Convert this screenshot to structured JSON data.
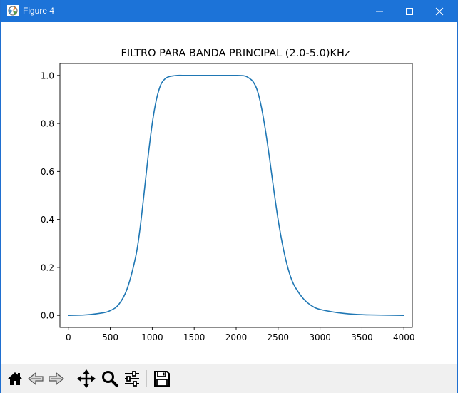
{
  "window": {
    "title": "Figure 4"
  },
  "toolbar": {
    "buttons": [
      {
        "icon": "home-icon"
      },
      {
        "icon": "back-arrow-icon"
      },
      {
        "icon": "forward-arrow-icon"
      },
      {
        "icon": "pan-move-icon"
      },
      {
        "icon": "zoom-magnifier-icon"
      },
      {
        "icon": "configure-subplots-icon"
      },
      {
        "icon": "save-floppy-icon"
      }
    ]
  },
  "chart_data": {
    "type": "line",
    "title": "FILTRO PARA BANDA PRINCIPAL (2.0-5.0)KHz",
    "xlabel": "",
    "ylabel": "",
    "xlim": [
      -100,
      4100
    ],
    "ylim": [
      -0.05,
      1.05
    ],
    "xticks": [
      0,
      500,
      1000,
      1500,
      2000,
      2500,
      3000,
      3500,
      4000
    ],
    "yticks": [
      0.0,
      0.2,
      0.4,
      0.6,
      0.8,
      1.0
    ],
    "ytick_labels": [
      "0.0",
      "0.2",
      "0.4",
      "0.6",
      "0.8",
      "1.0"
    ],
    "grid": false,
    "series": [
      {
        "color": "#1f77b4",
        "x": [
          0,
          200,
          400,
          500,
          600,
          700,
          800,
          850,
          900,
          950,
          1000,
          1050,
          1100,
          1150,
          1200,
          1300,
          1400,
          1600,
          1800,
          2000,
          2100,
          2150,
          2200,
          2250,
          2300,
          2350,
          2400,
          2450,
          2500,
          2550,
          2600,
          2650,
          2700,
          2800,
          2900,
          3000,
          3200,
          3400,
          3600,
          4000
        ],
        "y": [
          0.0,
          0.002,
          0.01,
          0.02,
          0.045,
          0.11,
          0.24,
          0.35,
          0.5,
          0.66,
          0.8,
          0.9,
          0.96,
          0.985,
          0.995,
          1.0,
          1.0,
          1.0,
          1.0,
          1.0,
          0.998,
          0.99,
          0.975,
          0.94,
          0.87,
          0.77,
          0.65,
          0.52,
          0.4,
          0.3,
          0.22,
          0.16,
          0.12,
          0.07,
          0.04,
          0.025,
          0.012,
          0.005,
          0.002,
          0.0
        ]
      }
    ]
  }
}
